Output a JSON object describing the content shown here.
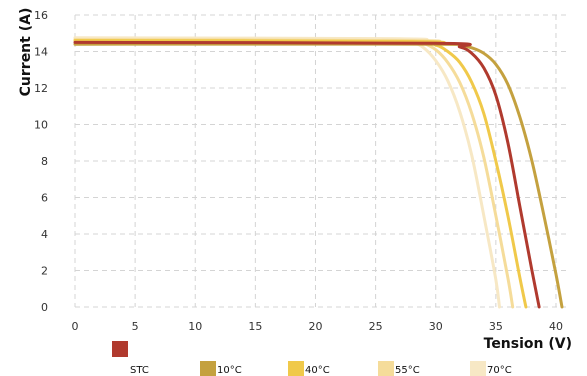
{
  "chart_data": {
    "type": "line",
    "xlabel": "Tension (V)",
    "ylabel": "Current (A)",
    "xlim": [
      0,
      41
    ],
    "ylim": [
      0,
      16
    ],
    "x_ticks": [
      0,
      5,
      10,
      15,
      20,
      25,
      30,
      35,
      40
    ],
    "y_ticks": [
      0,
      2,
      4,
      6,
      8,
      10,
      12,
      14,
      16
    ],
    "grid": true,
    "legend_position": "bottom",
    "series": [
      {
        "name": "STC",
        "color": "#b03a2e",
        "x": [
          0,
          30,
          32,
          33,
          34,
          35,
          36,
          37,
          38,
          38.6
        ],
        "y": [
          14.5,
          14.45,
          14.25,
          13.9,
          13.1,
          11.6,
          9.0,
          5.5,
          2.0,
          0
        ]
      },
      {
        "name": "10°C",
        "color": "#c4a13f",
        "x": [
          0,
          30,
          32,
          33,
          34,
          35,
          36,
          37,
          38,
          39,
          40,
          40.5
        ],
        "y": [
          14.4,
          14.4,
          14.35,
          14.2,
          13.9,
          13.3,
          12.2,
          10.4,
          8.0,
          5.0,
          1.8,
          0
        ]
      },
      {
        "name": "40°C",
        "color": "#f0c94a",
        "x": [
          0,
          28,
          30,
          31,
          32,
          33,
          34,
          35,
          36,
          37,
          37.5
        ],
        "y": [
          14.6,
          14.55,
          14.35,
          14.0,
          13.4,
          12.3,
          10.6,
          8.0,
          5.0,
          1.6,
          0
        ]
      },
      {
        "name": "55°C",
        "color": "#f5dc9a",
        "x": [
          0,
          28,
          29,
          30,
          31,
          32,
          33,
          34,
          35,
          36,
          36.4
        ],
        "y": [
          14.65,
          14.6,
          14.45,
          14.1,
          13.4,
          12.3,
          10.6,
          8.2,
          5.0,
          1.6,
          0
        ]
      },
      {
        "name": "70°C",
        "color": "#f7e8c5",
        "x": [
          0,
          27,
          28,
          29,
          30,
          31,
          32,
          33,
          34,
          35,
          35.3
        ],
        "y": [
          14.75,
          14.7,
          14.55,
          14.2,
          13.5,
          12.4,
          10.7,
          8.3,
          5.0,
          1.5,
          0
        ]
      }
    ]
  },
  "colors": {
    "grid": "#d4d4d4",
    "background": "#ffffff"
  }
}
